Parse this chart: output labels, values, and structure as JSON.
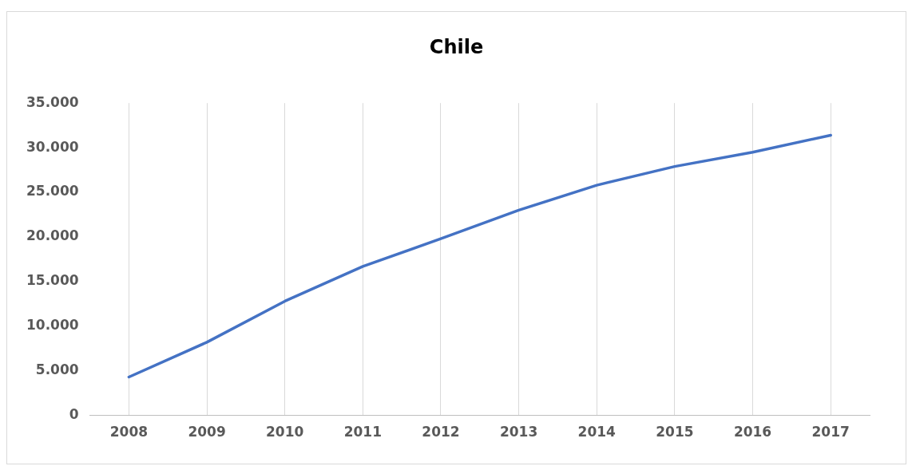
{
  "chart_data": {
    "type": "line",
    "title": "Chile",
    "categories": [
      "2008",
      "2009",
      "2010",
      "2011",
      "2012",
      "2013",
      "2014",
      "2015",
      "2016",
      "2017"
    ],
    "series": [
      {
        "color": "#4472c4",
        "values": [
          4300,
          8200,
          12800,
          16700,
          19800,
          23000,
          25800,
          27900,
          29500,
          31400
        ]
      }
    ],
    "ylim": [
      0,
      35000
    ],
    "yticks": [
      {
        "value": 0,
        "label": "0"
      },
      {
        "value": 5000,
        "label": "5.000"
      },
      {
        "value": 10000,
        "label": "10.000"
      },
      {
        "value": 15000,
        "label": "15.000"
      },
      {
        "value": 20000,
        "label": "20.000"
      },
      {
        "value": 25000,
        "label": "25.000"
      },
      {
        "value": 30000,
        "label": "30.000"
      },
      {
        "value": 35000,
        "label": "35.000"
      }
    ],
    "grid": "x",
    "marker": "none",
    "line_style": "solid",
    "legend": false
  }
}
